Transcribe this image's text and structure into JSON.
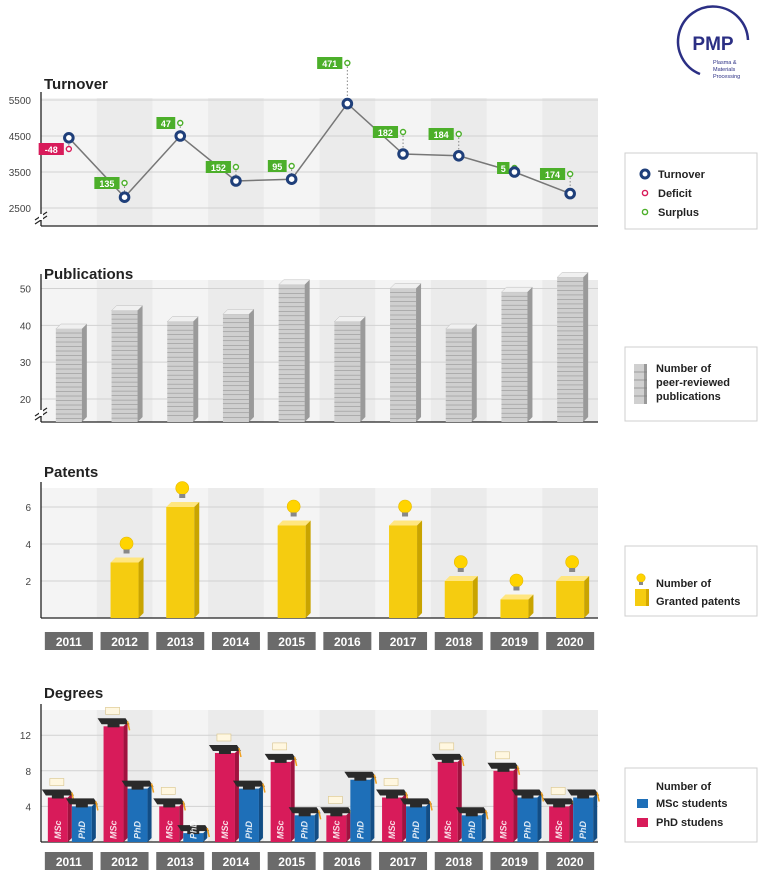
{
  "logo": {
    "mark": "PMP",
    "line1": "Plasma &",
    "line2": "Materials",
    "line3": "Processing"
  },
  "years": [
    "2011",
    "2012",
    "2013",
    "2014",
    "2015",
    "2016",
    "2017",
    "2018",
    "2019",
    "2020"
  ],
  "colors": {
    "turnover": "#1f3f7a",
    "deficit": "#d81b5a",
    "surplus": "#4caf2a",
    "bulb": "#ffd400",
    "bar_yellow": "#f5cc10",
    "msc": "#1e6fb8",
    "phd": "#d81b5a",
    "year_label_bg": "#6b6b6b",
    "logo": "#2b2f84"
  },
  "turnover_panel": {
    "title": "Turnover",
    "legend": [
      {
        "label": "Turnover",
        "marker": "turnover"
      },
      {
        "label": "Deficit",
        "marker": "deficit"
      },
      {
        "label": "Surplus",
        "marker": "surplus"
      }
    ]
  },
  "publications_panel": {
    "title": "Publications",
    "legend_lines": [
      "Number of",
      "peer-reviewed",
      "publications"
    ]
  },
  "patents_panel": {
    "title": "Patents",
    "legend_lines": [
      "Number of",
      "Granted patents"
    ]
  },
  "degrees_panel": {
    "title": "Degrees",
    "legend_title": "Number of",
    "legend": [
      {
        "label": "MSc students",
        "color": "msc"
      },
      {
        "label": "PhD studens",
        "color": "phd"
      }
    ],
    "bar_labels": {
      "msc": "MSc",
      "phd": "PhD"
    }
  },
  "chart_data": [
    {
      "type": "line",
      "title": "Turnover",
      "x": [
        "2011",
        "2012",
        "2013",
        "2014",
        "2015",
        "2016",
        "2017",
        "2018",
        "2019",
        "2020"
      ],
      "series": [
        {
          "name": "Turnover",
          "values": [
            4450,
            2800,
            4500,
            3250,
            3300,
            5400,
            4000,
            3950,
            3500,
            2900
          ]
        }
      ],
      "result": {
        "values": [
          -48,
          135,
          47,
          152,
          95,
          471,
          182,
          184,
          5,
          174
        ],
        "labels": [
          "-48",
          "135",
          "47",
          "152",
          "95",
          "471",
          "182",
          "184",
          "5",
          "174"
        ]
      },
      "yticks": [
        2500,
        3500,
        4500,
        5500
      ],
      "ylim": [
        2000,
        5800
      ],
      "grid": true,
      "legend": "right"
    },
    {
      "type": "bar",
      "title": "Publications",
      "categories": [
        "2011",
        "2012",
        "2013",
        "2014",
        "2015",
        "2016",
        "2017",
        "2018",
        "2019",
        "2020"
      ],
      "series": [
        {
          "name": "Number of peer-reviewed publications",
          "values": [
            39,
            44,
            41,
            43,
            51,
            41,
            50,
            39,
            49,
            53
          ]
        }
      ],
      "yticks": [
        20,
        30,
        40,
        50
      ],
      "ylim": [
        15,
        55
      ],
      "grid": true,
      "legend": "right"
    },
    {
      "type": "bar",
      "title": "Patents",
      "categories": [
        "2011",
        "2012",
        "2013",
        "2014",
        "2015",
        "2016",
        "2017",
        "2018",
        "2019",
        "2020"
      ],
      "series": [
        {
          "name": "Number of Granted patents",
          "values": [
            0,
            3,
            6,
            0,
            5,
            0,
            5,
            2,
            1,
            2
          ]
        }
      ],
      "yticks": [
        2,
        4,
        6
      ],
      "ylim": [
        0,
        7
      ],
      "grid": true,
      "legend": "right"
    },
    {
      "type": "bar",
      "title": "Degrees",
      "categories": [
        "2011",
        "2012",
        "2013",
        "2014",
        "2015",
        "2016",
        "2017",
        "2018",
        "2019",
        "2020"
      ],
      "series": [
        {
          "name": "MSc students",
          "values": [
            5,
            13,
            4,
            10,
            9,
            3,
            5,
            9,
            8,
            4
          ]
        },
        {
          "name": "PhD studens",
          "values": [
            4,
            6,
            1,
            6,
            3,
            7,
            4,
            3,
            5,
            5
          ]
        }
      ],
      "yticks": [
        4,
        8,
        12
      ],
      "ylim": [
        0,
        14
      ],
      "grid": true,
      "legend": "right"
    }
  ]
}
